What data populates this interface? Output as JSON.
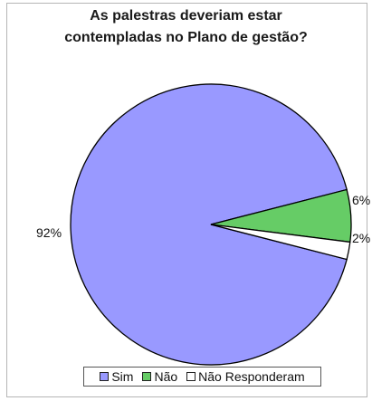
{
  "chart_data": {
    "type": "pie",
    "title": "As palestras deveriam estar contempladas no Plano de gestão?",
    "title_lines": [
      "As palestras deveriam estar",
      "contempladas no Plano de gestão?"
    ],
    "categories": [
      "Sim",
      "Não",
      "Não Responderam"
    ],
    "values": [
      92,
      6,
      2
    ],
    "value_labels": [
      "92%",
      "6%",
      "2%"
    ],
    "colors": [
      "#9999ff",
      "#66cc66",
      "#ffffff"
    ],
    "legend_position": "bottom"
  }
}
